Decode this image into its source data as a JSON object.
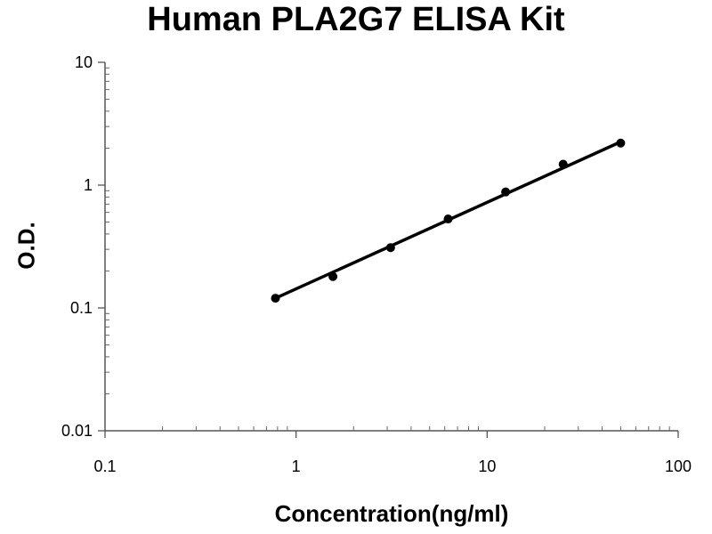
{
  "chart_data": {
    "type": "scatter",
    "title": "Human PLA2G7 ELISA Kit",
    "xlabel": "Concentration(ng/ml)",
    "ylabel": "O.D.",
    "xscale": "log",
    "yscale": "log",
    "xlim": [
      0.1,
      100
    ],
    "ylim": [
      0.01,
      10
    ],
    "xticks": [
      {
        "value": 0.1,
        "label": "0.1"
      },
      {
        "value": 1,
        "label": "1"
      },
      {
        "value": 10,
        "label": "10"
      },
      {
        "value": 100,
        "label": "100"
      }
    ],
    "yticks": [
      {
        "value": 0.01,
        "label": "0.01"
      },
      {
        "value": 0.1,
        "label": "0.1"
      },
      {
        "value": 1,
        "label": "1"
      },
      {
        "value": 10,
        "label": "10"
      }
    ],
    "grid": false,
    "legend": "none",
    "marker_color": "#000000",
    "line_color": "#000000",
    "series": [
      {
        "x": [
          0.78,
          1.56,
          3.125,
          6.25,
          12.5,
          25,
          50
        ],
        "y": [
          0.12,
          0.18,
          0.31,
          0.53,
          0.88,
          1.48,
          2.2
        ]
      }
    ],
    "fit_line": {
      "x": [
        0.78,
        50
      ],
      "y": [
        0.12,
        2.25
      ]
    }
  }
}
